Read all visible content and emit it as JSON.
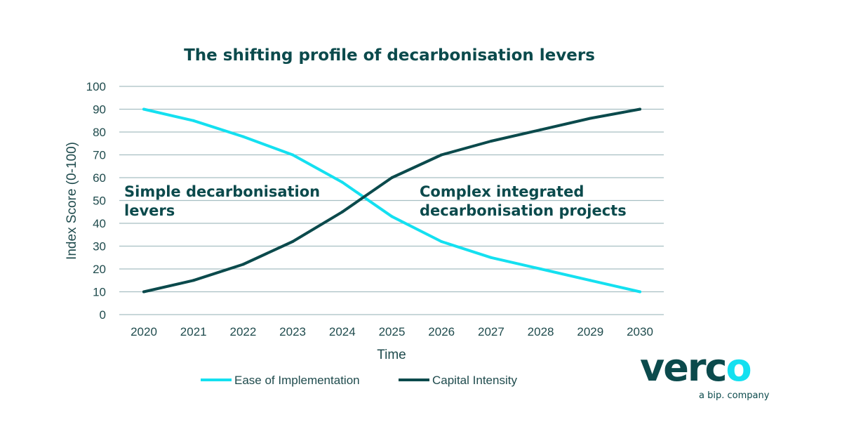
{
  "chart_data": {
    "type": "line",
    "title": "The shifting profile of decarbonisation levers",
    "xlabel": "Time",
    "ylabel": "Index Score (0-100)",
    "x": [
      "2020",
      "2021",
      "2022",
      "2023",
      "2024",
      "2025",
      "2026",
      "2027",
      "2028",
      "2029",
      "2030"
    ],
    "ylim": [
      0,
      100
    ],
    "yticks": [
      0,
      10,
      20,
      30,
      40,
      50,
      60,
      70,
      80,
      90,
      100
    ],
    "grid": true,
    "legend_placement": "bottom",
    "series": [
      {
        "name": "Ease of Implementation",
        "color": "#14e0f0",
        "values": [
          90,
          85,
          78,
          70,
          58,
          43,
          32,
          25,
          20,
          15,
          10
        ]
      },
      {
        "name": "Capital Intensity",
        "color": "#0b4a4c",
        "values": [
          10,
          15,
          22,
          32,
          45,
          60,
          70,
          76,
          81,
          86,
          90
        ]
      }
    ],
    "annotations": [
      {
        "lines": [
          "Simple decarbonisation",
          "levers"
        ]
      },
      {
        "lines": [
          "Complex integrated",
          "decarbonisation projects"
        ]
      }
    ]
  },
  "logo": {
    "word_left": "verc",
    "word_right": "o",
    "tagline": "a bip. company",
    "colors": {
      "primary": "#0b4a4c",
      "accent": "#14e0f0"
    }
  }
}
